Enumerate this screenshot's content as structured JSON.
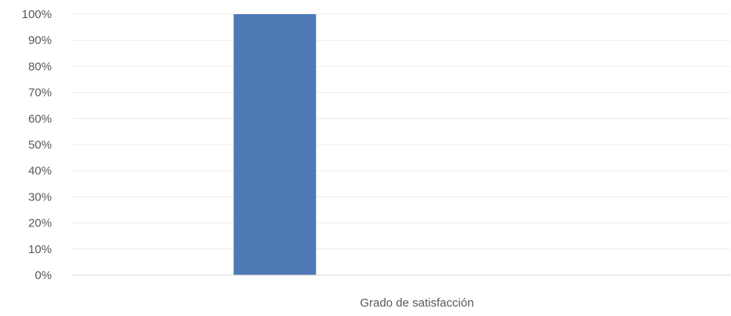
{
  "chart_data": {
    "type": "bar",
    "categories": [
      ""
    ],
    "series": [
      {
        "values": [
          100
        ]
      }
    ],
    "xlabel": "Grado de satisfacción",
    "ylabel": "",
    "ylim": [
      0,
      100
    ],
    "y_ticks": [
      "0%",
      "10%",
      "20%",
      "30%",
      "40%",
      "50%",
      "60%",
      "70%",
      "80%",
      "90%",
      "100%"
    ],
    "y_tick_values": [
      0,
      10,
      20,
      30,
      40,
      50,
      60,
      70,
      80,
      90,
      100
    ],
    "grid": true,
    "legend": "none",
    "colors": {
      "bar": "#4e79b5",
      "grid": "#ececec",
      "axis": "#d6d6d6",
      "text": "#595959"
    }
  }
}
